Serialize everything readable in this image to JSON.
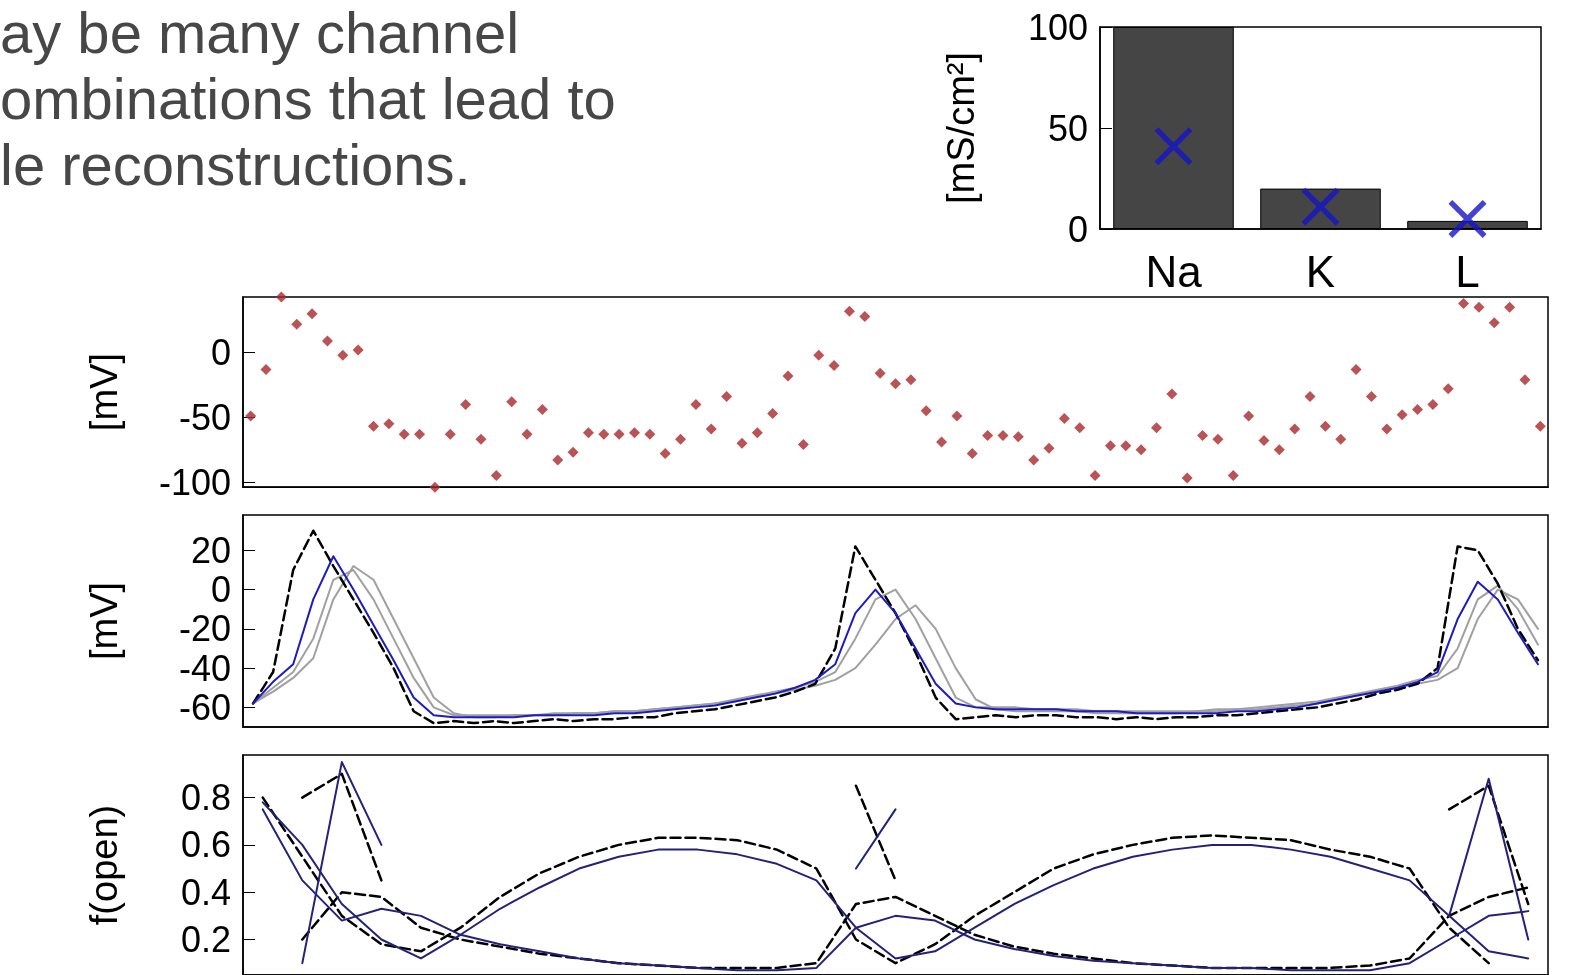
{
  "chart_data": [
    {
      "type": "other",
      "annotations": [
        "ay be many channel",
        "ombinations that lead to",
        "le reconstructions."
      ]
    },
    {
      "type": "bar",
      "ylabel": "[mS/cm²]",
      "categories": [
        "Na",
        "K",
        "L"
      ],
      "ylim": [
        0,
        100
      ],
      "yticks": [
        0,
        50,
        100
      ],
      "marker": "cross",
      "series": [
        {
          "type": "bar",
          "color": "#454545",
          "values": [
            100,
            20,
            4
          ]
        },
        {
          "type": "scatter",
          "color": "#1414c8",
          "x": [
            "Na",
            "K",
            "L"
          ],
          "values": [
            41,
            11,
            5
          ]
        }
      ]
    },
    {
      "type": "scatter",
      "ylabel": "[mV]",
      "marker": "diamond",
      "tick_labels": "y",
      "ylim": [
        -104,
        43
      ],
      "yticks": [
        -100,
        -50,
        0
      ],
      "categories": [
        null,
        null,
        null,
        null,
        null,
        null,
        null,
        null,
        null,
        null,
        null,
        null,
        null,
        null,
        null,
        null,
        null,
        null,
        null,
        null,
        null,
        null,
        null,
        null,
        null,
        null,
        null,
        null,
        null,
        null,
        null,
        null,
        null,
        null,
        null,
        null,
        null,
        null,
        null,
        null,
        null,
        null,
        null,
        null,
        null,
        null,
        null,
        null,
        null,
        null,
        null,
        null,
        null,
        null,
        null,
        null,
        null,
        null,
        null,
        null,
        null,
        null,
        null,
        null,
        null,
        null,
        null,
        null,
        null,
        null,
        null,
        null,
        null,
        null,
        null,
        null,
        null,
        null,
        null,
        null,
        null,
        null,
        null,
        null,
        null
      ],
      "series": [
        {
          "color": "#a8282c",
          "values": [
            -49,
            -13,
            43,
            22,
            30,
            9,
            -2,
            2,
            -57,
            -55,
            -63,
            -63,
            -104,
            -63,
            -40,
            -67,
            -95,
            -38,
            -63,
            -44,
            -83,
            -77,
            -62,
            -63,
            -63,
            -62,
            -63,
            -78,
            -67,
            -40,
            -59,
            -34,
            -70,
            -62,
            -47,
            -18,
            -71,
            -2,
            -10,
            32,
            28,
            -16,
            -24,
            -21,
            -45,
            -69,
            -49,
            -78,
            -64,
            -64,
            -65,
            -83,
            -74,
            -51,
            -58,
            -95,
            -72,
            -72,
            -75,
            -58,
            -32,
            -97,
            -64,
            -67,
            -95,
            -49,
            -68,
            -75,
            -59,
            -34,
            -57,
            -67,
            -13,
            -34,
            -59,
            -48,
            -44,
            -40,
            -28,
            38,
            35,
            23,
            35,
            -21,
            -57
          ]
        }
      ]
    },
    {
      "type": "line",
      "ylabel": "[mV]",
      "marker": "none",
      "tick_labels": "y",
      "ylim": [
        -70,
        38
      ],
      "yticks": [
        -60,
        -40,
        -20,
        0,
        20
      ],
      "categories": [
        null,
        null,
        null,
        null,
        null,
        null,
        null,
        null,
        null,
        null,
        null,
        null,
        null,
        null,
        null,
        null,
        null,
        null,
        null,
        null,
        null,
        null,
        null,
        null,
        null,
        null,
        null,
        null,
        null,
        null,
        null,
        null,
        null,
        null,
        null,
        null,
        null,
        null,
        null,
        null,
        null,
        null,
        null,
        null,
        null,
        null,
        null,
        null,
        null,
        null,
        null,
        null,
        null,
        null,
        null,
        null,
        null,
        null,
        null,
        null,
        null,
        null,
        null,
        null,
        null
      ],
      "series": [
        {
          "color": "#a0a0a0",
          "line_style": "solid",
          "values": [
            -58,
            -50,
            -42,
            -25,
            5,
            10,
            -5,
            -25,
            -45,
            -60,
            -64,
            -64,
            -64,
            -64,
            -64,
            -63,
            -63,
            -63,
            -62,
            -62,
            -61,
            -60,
            -59,
            -58,
            -56,
            -54,
            -52,
            -50,
            -47,
            -42,
            -25,
            -5,
            0,
            -15,
            -35,
            -55,
            -60,
            -60,
            -60,
            -61,
            -61,
            -61,
            -62,
            -62,
            -62,
            -62,
            -62,
            -62,
            -61,
            -61,
            -60,
            -59,
            -58,
            -57,
            -55,
            -53,
            -51,
            -49,
            -46,
            -44,
            -30,
            -5,
            2,
            -10,
            -28
          ]
        },
        {
          "color": "#a0a0a0",
          "line_style": "solid",
          "values": [
            -58,
            -52,
            -45,
            -35,
            -5,
            12,
            5,
            -15,
            -35,
            -55,
            -63,
            -65,
            -65,
            -64,
            -64,
            -64,
            -63,
            -63,
            -62,
            -62,
            -61,
            -60,
            -59,
            -58,
            -57,
            -55,
            -53,
            -51,
            -49,
            -46,
            -40,
            -28,
            -15,
            -8,
            -20,
            -40,
            -56,
            -61,
            -62,
            -62,
            -62,
            -62,
            -63,
            -63,
            -63,
            -63,
            -63,
            -62,
            -62,
            -61,
            -61,
            -60,
            -59,
            -58,
            -56,
            -54,
            -52,
            -50,
            -48,
            -46,
            -40,
            -15,
            0,
            -5,
            -20
          ]
        },
        {
          "color": "#000000",
          "line_style": "dashed",
          "values": [
            -58,
            -42,
            10,
            30,
            12,
            -5,
            -22,
            -40,
            -62,
            -68,
            -67,
            -68,
            -67,
            -68,
            -67,
            -66,
            -67,
            -66,
            -66,
            -65,
            -65,
            -63,
            -62,
            -61,
            -59,
            -57,
            -55,
            -52,
            -48,
            -30,
            22,
            5,
            -12,
            -32,
            -55,
            -66,
            -65,
            -64,
            -65,
            -64,
            -64,
            -65,
            -65,
            -66,
            -65,
            -66,
            -65,
            -65,
            -64,
            -64,
            -63,
            -62,
            -61,
            -60,
            -58,
            -56,
            -53,
            -51,
            -48,
            -40,
            22,
            20,
            3,
            -20,
            -36
          ]
        },
        {
          "color": "#1c1cc0",
          "line_style": "solid",
          "values": [
            -58,
            -47,
            -38,
            -5,
            17,
            0,
            -18,
            -36,
            -55,
            -64,
            -65,
            -65,
            -65,
            -65,
            -64,
            -64,
            -64,
            -64,
            -63,
            -63,
            -62,
            -61,
            -60,
            -59,
            -57,
            -55,
            -53,
            -50,
            -46,
            -38,
            -12,
            0,
            -12,
            -30,
            -48,
            -58,
            -60,
            -61,
            -61,
            -61,
            -61,
            -62,
            -62,
            -62,
            -63,
            -63,
            -63,
            -63,
            -63,
            -62,
            -62,
            -61,
            -60,
            -58,
            -56,
            -54,
            -52,
            -50,
            -47,
            -42,
            -15,
            4,
            -5,
            -22,
            -38
          ]
        }
      ]
    },
    {
      "type": "line",
      "ylabel": "f(open)",
      "marker": "none",
      "tick_labels": "y",
      "ylim": [
        0.05,
        0.98
      ],
      "yticks": [
        0.2,
        0.4,
        0.6,
        0.8
      ],
      "categories": [
        null,
        null,
        null,
        null,
        null,
        null,
        null,
        null,
        null,
        null,
        null,
        null,
        null,
        null,
        null,
        null,
        null,
        null,
        null,
        null,
        null,
        null,
        null,
        null,
        null,
        null,
        null,
        null,
        null,
        null,
        null,
        null,
        null
      ],
      "series": [
        {
          "color": "#000000",
          "line_style": "dashed",
          "values": [
            null,
            0.8,
            0.9,
            0.45,
            null,
            null,
            null,
            null,
            null,
            null,
            null,
            null,
            null,
            null,
            null,
            0.85,
            0.45,
            null,
            null,
            null,
            null,
            null,
            null,
            null,
            null,
            null,
            null,
            null,
            null,
            null,
            0.75,
            0.85,
            0.35
          ]
        },
        {
          "color": "#000000",
          "line_style": "dashed",
          "values": [
            0.8,
            0.55,
            0.3,
            0.18,
            0.15,
            0.25,
            0.38,
            0.48,
            0.55,
            0.6,
            0.63,
            0.63,
            0.62,
            0.58,
            0.5,
            0.2,
            0.1,
            0.18,
            0.3,
            0.4,
            0.5,
            0.56,
            0.6,
            0.63,
            0.64,
            0.63,
            0.62,
            0.58,
            0.55,
            0.5,
            0.25,
            0.1,
            null
          ]
        },
        {
          "color": "#000000",
          "line_style": "dashed",
          "values": [
            null,
            0.2,
            0.4,
            0.38,
            0.25,
            0.2,
            0.17,
            0.14,
            0.12,
            0.1,
            0.09,
            0.08,
            0.08,
            0.08,
            0.1,
            0.35,
            0.38,
            0.3,
            0.22,
            0.17,
            0.14,
            0.12,
            0.1,
            0.09,
            0.08,
            0.08,
            0.08,
            0.08,
            0.09,
            0.12,
            0.3,
            0.38,
            0.42
          ]
        },
        {
          "color": "#22227a",
          "line_style": "solid",
          "values": [
            null,
            0.1,
            0.95,
            0.6,
            null,
            null,
            null,
            null,
            null,
            null,
            null,
            null,
            null,
            null,
            null,
            0.5,
            0.75,
            null,
            null,
            null,
            null,
            null,
            null,
            null,
            null,
            null,
            null,
            null,
            null,
            null,
            0.3,
            0.88,
            0.2
          ]
        },
        {
          "color": "#22227a",
          "line_style": "solid",
          "values": [
            0.78,
            0.6,
            0.35,
            0.2,
            0.12,
            0.22,
            0.33,
            0.42,
            0.5,
            0.55,
            0.58,
            0.58,
            0.56,
            0.52,
            0.45,
            0.25,
            0.12,
            0.15,
            0.25,
            0.35,
            0.43,
            0.5,
            0.55,
            0.58,
            0.6,
            0.6,
            0.58,
            0.55,
            0.5,
            0.45,
            0.3,
            0.15,
            0.12
          ]
        },
        {
          "color": "#22227a",
          "line_style": "solid",
          "values": [
            0.75,
            0.45,
            0.28,
            0.33,
            0.3,
            0.22,
            0.18,
            0.15,
            0.12,
            0.1,
            0.09,
            0.08,
            0.07,
            0.07,
            0.08,
            0.25,
            0.3,
            0.28,
            0.2,
            0.16,
            0.13,
            0.11,
            0.1,
            0.09,
            0.08,
            0.08,
            0.07,
            0.07,
            0.07,
            0.1,
            0.2,
            0.3,
            0.32
          ]
        }
      ]
    }
  ]
}
